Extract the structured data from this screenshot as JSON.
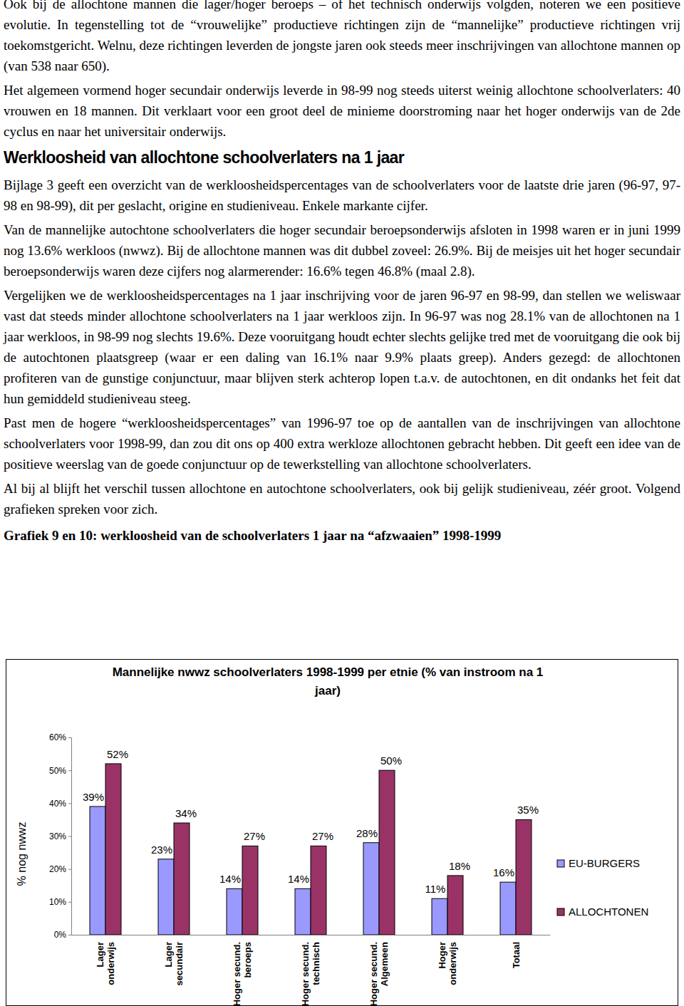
{
  "paragraphs_before": [
    "Ook bij de allochtone mannen die lager/hoger beroeps – of het technisch onderwijs volgden, noteren we een positieve evolutie. In tegenstelling tot de “vrouwelijke” productieve richtingen zijn de “mannelijke” productieve richtingen vrij toekomstgericht. Welnu, deze richtingen leverden de jongste jaren ook steeds meer inschrijvingen van allochtone mannen op (van 538 naar 650).",
    "Het algemeen vormend hoger secundair onderwijs leverde in 98-99 nog steeds uiterst weinig allochtone schoolverlaters: 40 vrouwen en 18 mannen. Dit verklaart voor een groot deel de minieme doorstroming naar het hoger onderwijs van de 2de cyclus en naar het universitair onderwijs."
  ],
  "heading": "Werkloosheid van allochtone schoolverlaters na 1 jaar",
  "paragraphs_after": [
    "Bijlage 3 geeft een overzicht van de werkloosheidspercentages van de schoolverlaters voor de laatste drie jaren (96-97, 97-98 en 98-99), dit per geslacht, origine en studieniveau. Enkele markante cijfer.",
    "Van de mannelijke autochtone schoolverlaters die hoger secundair beroepsonderwijs afsloten in 1998 waren er in juni 1999 nog 13.6% werkloos (nwwz). Bij de allochtone mannen was dit dubbel zoveel: 26.9%. Bij de meisjes uit het hoger secundair beroepsonderwijs waren deze cijfers nog alarmerender: 16.6% tegen 46.8% (maal 2.8).",
    "Vergelijken we de werkloosheidspercentages na 1 jaar inschrijving voor de jaren 96-97 en 98-99, dan stellen we weliswaar vast dat steeds minder allochtone schoolverlaters na 1 jaar werkloos zijn. In 96-97 was nog 28.1% van de allochtonen na 1 jaar werkloos, in 98-99 nog slechts 19.6%. Deze vooruitgang houdt echter slechts gelijke tred met de vooruitgang die ook bij de autochtonen plaatsgreep (waar er een daling van 16.1% naar 9.9% plaats greep). Anders gezegd: de allochtonen profiteren van de gunstige conjunctuur, maar blijven sterk achterop lopen t.a.v. de autochtonen, en dit ondanks het feit dat hun gemiddeld studieniveau steeg.",
    "Past men de hogere “werkloosheidspercentages” van 1996-97 toe op de aantallen van de inschrijvingen van allochtone schoolverlaters voor 1998-99, dan zou dit ons op 400 extra werkloze allochtonen gebracht hebben. Dit geeft een idee van de positieve weerslag van de goede conjunctuur op de tewerkstelling van allochtone schoolverlaters.",
    "Al bij al blijft het verschil tussen allochtone en autochtone schoolverlaters, ook bij gelijk studieniveau, zéér groot. Volgend grafieken spreken voor zich."
  ],
  "caption": "Grafiek 9 en 10: werkloosheid van de schoolverlaters 1 jaar na “afzwaaien” 1998-1999",
  "chart_data": {
    "type": "bar",
    "title": "Mannelijke nwwz schoolverlaters 1998-1999 per etnie (% van instroom na 1 jaar)",
    "y_label": "% nog nwwz",
    "categories": [
      "Lager onderwijs",
      "Lager secundair",
      "Hoger secund. beroeps",
      "Hoger secund. technisch",
      "Hoger secund. Algemeen",
      "Hoger onderwijs",
      "Totaal"
    ],
    "series": [
      {
        "name": "EU-BURGERS",
        "color": "#9999ff",
        "values": [
          39,
          23,
          14,
          14,
          28,
          11,
          16
        ],
        "value_labels": [
          "39%",
          "23%",
          "14%",
          "14%",
          "28%",
          "11%",
          "16%"
        ]
      },
      {
        "name": "ALLOCHTONEN",
        "color": "#993366",
        "values": [
          52,
          34,
          27,
          27,
          50,
          18,
          35
        ],
        "value_labels": [
          "52%",
          "34%",
          "27%",
          "27%",
          "50%",
          "18%",
          "35%"
        ]
      }
    ],
    "ylim": [
      0,
      60
    ],
    "yticks": [
      {
        "value": 0,
        "label": "0%"
      },
      {
        "value": 10,
        "label": "10%"
      },
      {
        "value": 20,
        "label": "20%"
      },
      {
        "value": 30,
        "label": "30%"
      },
      {
        "value": 40,
        "label": "40%"
      },
      {
        "value": 50,
        "label": "50%"
      },
      {
        "value": 60,
        "label": "60%"
      }
    ],
    "grid": false,
    "data_labels": true,
    "legend": "right"
  }
}
